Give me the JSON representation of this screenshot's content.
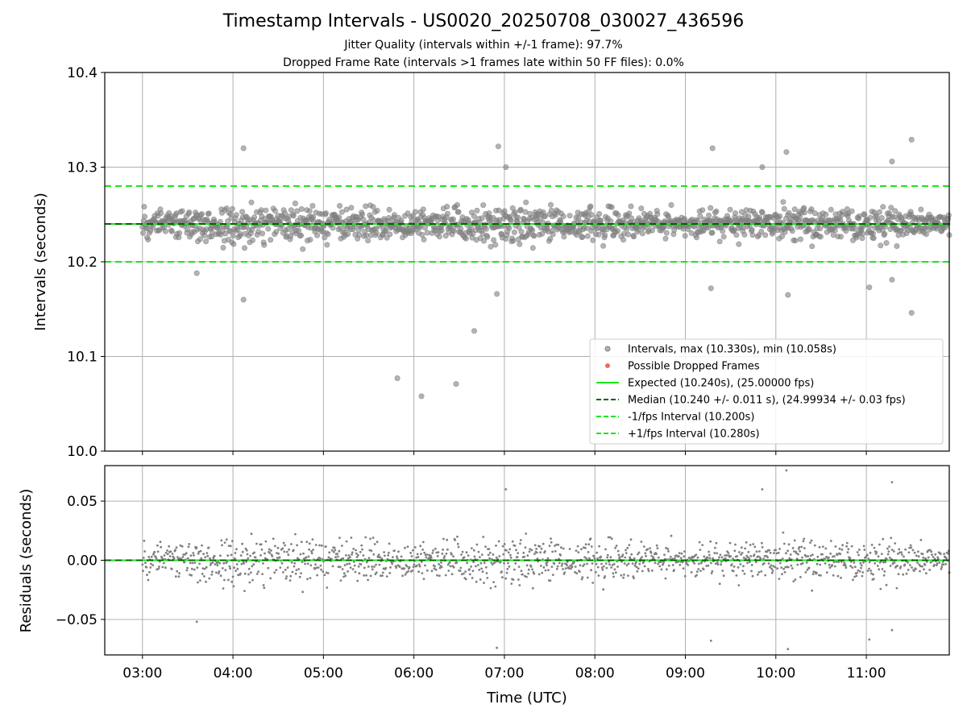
{
  "figure": {
    "title": "Timestamp Intervals - US0020_20250708_030027_436596",
    "subtitle_1": "Jitter Quality (intervals within +/-1 frame): 97.7%",
    "subtitle_2": "Dropped Frame Rate (intervals >1 frames late within 50 FF files): 0.0%"
  },
  "colors": {
    "points": "#808080",
    "dropped": "#e8534f",
    "expected": "#19e619",
    "median": "#006400",
    "interval": "#19e619",
    "grid": "#b0b0b0"
  },
  "chart_data": [
    {
      "type": "scatter",
      "name": "top-intervals",
      "xlabel": "",
      "ylabel": "Intervals (seconds)",
      "xlim": [
        "02:35",
        "11:55"
      ],
      "ylim": [
        10.0,
        10.4
      ],
      "yticks": [
        10.0,
        10.1,
        10.2,
        10.3,
        10.4
      ],
      "ytick_labels": [
        "10.0",
        "10.1",
        "10.2",
        "10.3",
        "10.4"
      ],
      "grid": true,
      "legend_position": "lower-right",
      "x_start": "03:00",
      "x_end": "11:55",
      "expected": 10.24,
      "median": 10.24,
      "lower_interval": 10.2,
      "upper_interval": 10.28,
      "max": 10.33,
      "min": 10.058,
      "n_points": 1400,
      "std": 0.011,
      "outliers": [
        {
          "x": "04:07",
          "y": 10.32
        },
        {
          "x": "04:07",
          "y": 10.16
        },
        {
          "x": "05:49",
          "y": 10.077
        },
        {
          "x": "06:05",
          "y": 10.058
        },
        {
          "x": "06:28",
          "y": 10.071
        },
        {
          "x": "06:40",
          "y": 10.127
        },
        {
          "x": "06:56",
          "y": 10.322
        },
        {
          "x": "06:55",
          "y": 10.166
        },
        {
          "x": "09:18",
          "y": 10.32
        },
        {
          "x": "09:17",
          "y": 10.172
        },
        {
          "x": "10:07",
          "y": 10.316
        },
        {
          "x": "10:08",
          "y": 10.165
        },
        {
          "x": "11:30",
          "y": 10.329
        },
        {
          "x": "11:30",
          "y": 10.146
        },
        {
          "x": "11:17",
          "y": 10.181
        },
        {
          "x": "11:02",
          "y": 10.173
        },
        {
          "x": "07:01",
          "y": 10.3
        },
        {
          "x": "11:17",
          "y": 10.306
        },
        {
          "x": "09:51",
          "y": 10.3
        },
        {
          "x": "03:36",
          "y": 10.188
        }
      ],
      "legend": [
        {
          "label": "Intervals, max (10.330s), min (10.058s)",
          "kind": "marker-grey"
        },
        {
          "label": "Possible Dropped Frames",
          "kind": "marker-red"
        },
        {
          "label": "Expected (10.240s), (25.00000 fps)",
          "kind": "line-expected"
        },
        {
          "label": "Median (10.240 +/- 0.011 s), (24.99934 +/- 0.03 fps)",
          "kind": "dash-median"
        },
        {
          "label": "-1/fps Interval (10.200s)",
          "kind": "dash-interval"
        },
        {
          "label": "+1/fps Interval (10.280s)",
          "kind": "dash-interval"
        }
      ]
    },
    {
      "type": "scatter",
      "name": "bottom-residuals",
      "xlabel": "Time (UTC)",
      "ylabel": "Residuals (seconds)",
      "xlim": [
        "02:35",
        "11:55"
      ],
      "ylim": [
        -0.08,
        0.08
      ],
      "xticks": [
        "03:00",
        "04:00",
        "05:00",
        "06:00",
        "07:00",
        "08:00",
        "09:00",
        "10:00",
        "11:00"
      ],
      "yticks": [
        -0.05,
        0.0,
        0.05
      ],
      "ytick_labels": [
        "−0.05",
        "0.00",
        "0.05"
      ],
      "grid": true,
      "zero_line": 0.0,
      "std": 0.011,
      "n_points": 1400
    }
  ]
}
